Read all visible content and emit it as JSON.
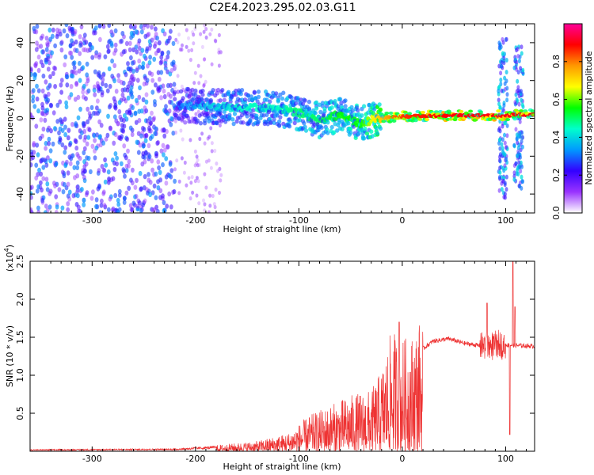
{
  "title": "C2E4.2023.295.02.03.G11",
  "chart_data": [
    {
      "type": "heatmap",
      "title": "",
      "xlabel": "Height of straight line (km)",
      "ylabel": "Frequency (Hz)",
      "xlim": [
        -360,
        128
      ],
      "ylim": [
        -50,
        50
      ],
      "xticks": [
        -300,
        -200,
        -100,
        0,
        100
      ],
      "yticks": [
        -40,
        -20,
        0,
        20,
        40
      ],
      "colorbar": {
        "label": "Normalized spectral amplitude",
        "range": [
          0,
          1
        ],
        "ticks": [
          "0.0",
          "0.2",
          "0.4",
          "0.6",
          "0.8"
        ],
        "colors": [
          "#ffffff",
          "#9933ff",
          "#3300ff",
          "#0099ff",
          "#00ffcc",
          "#00ff00",
          "#ffff00",
          "#ff9900",
          "#ff0000",
          "#ff0099"
        ]
      },
      "noise_band": {
        "x_range": [
          -360,
          -220
        ],
        "freq_range": [
          -50,
          50
        ],
        "amplitude": 0.25
      },
      "sparse_band": {
        "x_range": [
          -220,
          -175
        ],
        "freq_range": [
          -50,
          50
        ],
        "amplitude": 0.1
      },
      "signal_trace": [
        {
          "x": -220,
          "freq": 7,
          "amplitude": 0.3
        },
        {
          "x": -180,
          "freq": 6,
          "amplitude": 0.4
        },
        {
          "x": -150,
          "freq": 6,
          "amplitude": 0.45
        },
        {
          "x": -120,
          "freq": 5,
          "amplitude": 0.45
        },
        {
          "x": -100,
          "freq": 3,
          "amplitude": 0.5
        },
        {
          "x": -80,
          "freq": -1,
          "amplitude": 0.5
        },
        {
          "x": -60,
          "freq": 2,
          "amplitude": 0.55
        },
        {
          "x": -40,
          "freq": -3,
          "amplitude": 0.55
        },
        {
          "x": -25,
          "freq": 0,
          "amplitude": 0.7
        },
        {
          "x": 0,
          "freq": 1,
          "amplitude": 0.85
        },
        {
          "x": 50,
          "freq": 1.5,
          "amplitude": 0.9
        },
        {
          "x": 90,
          "freq": 1.5,
          "amplitude": 0.9
        },
        {
          "x": 128,
          "freq": 2,
          "amplitude": 0.9
        }
      ],
      "gap_bands": [
        {
          "x_range": [
            93,
            102
          ],
          "freq_range": [
            -42,
            42
          ],
          "amplitude": 0.3
        },
        {
          "x_range": [
            108,
            117
          ],
          "freq_range": [
            -38,
            38
          ],
          "amplitude": 0.3
        }
      ]
    },
    {
      "type": "line",
      "title": "",
      "xlabel": "Height of straight line (km)",
      "ylabel": "SNR (10 * v/v)",
      "y_multiplier": "(x10^4)",
      "multiplier_text": {
        "base": "(x10",
        "exp": "4",
        "close": ")"
      },
      "xlim": [
        -360,
        128
      ],
      "ylim": [
        0,
        2.5
      ],
      "xticks": [
        -300,
        -200,
        -100,
        0,
        100
      ],
      "yticks": [
        "0.5",
        "1.0",
        "1.5",
        "2.0",
        "2.5"
      ],
      "series": [
        {
          "color": "#ee3333",
          "envelope": [
            {
              "x": -360,
              "y": 0.02
            },
            {
              "x": -220,
              "y": 0.03
            },
            {
              "x": -180,
              "y": 0.06
            },
            {
              "x": -140,
              "y": 0.1
            },
            {
              "x": -110,
              "y": 0.18
            },
            {
              "x": -90,
              "y": 0.35
            },
            {
              "x": -70,
              "y": 0.45
            },
            {
              "x": -50,
              "y": 0.55
            },
            {
              "x": -30,
              "y": 0.6
            },
            {
              "x": -20,
              "y": 0.8
            },
            {
              "x": -10,
              "y": 1.2
            },
            {
              "x": 0,
              "y": 1.1
            },
            {
              "x": 10,
              "y": 1.15
            },
            {
              "x": 20,
              "y": 1.35
            },
            {
              "x": 30,
              "y": 1.45
            },
            {
              "x": 45,
              "y": 1.48
            },
            {
              "x": 60,
              "y": 1.42
            },
            {
              "x": 80,
              "y": 1.38
            },
            {
              "x": 100,
              "y": 1.4
            },
            {
              "x": 128,
              "y": 1.38
            }
          ],
          "spikes": [
            {
              "x": -3,
              "y": 1.7
            },
            {
              "x": 82,
              "y": 1.95
            },
            {
              "x": 104,
              "y": 0.22
            },
            {
              "x": 107,
              "y": 2.5
            },
            {
              "x": 109,
              "y": 1.9
            }
          ]
        }
      ]
    }
  ]
}
